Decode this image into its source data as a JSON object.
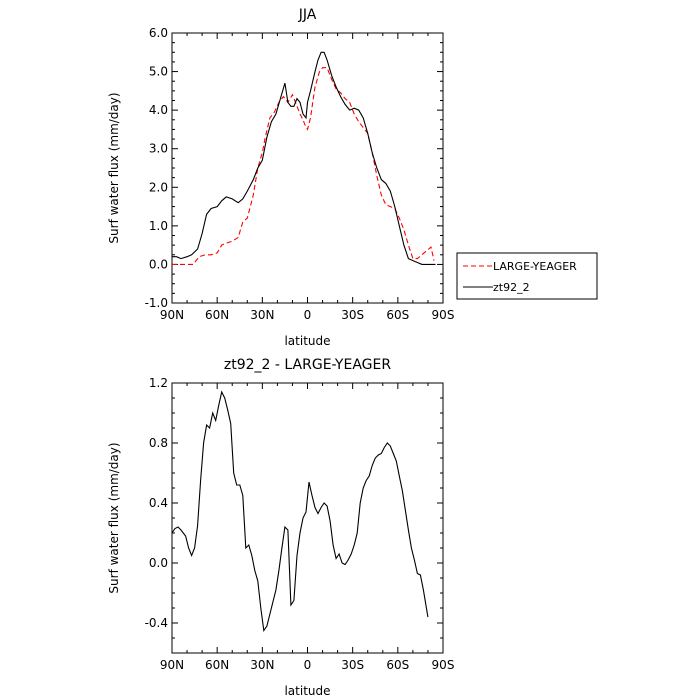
{
  "chart_data": [
    {
      "type": "line",
      "title": "JJA",
      "xlabel": "latitude",
      "ylabel": "Surf water flux (mm/day)",
      "xlim": [
        90,
        -90
      ],
      "ylim": [
        -1.0,
        6.0
      ],
      "xticks": [
        {
          "value": 90,
          "label": "90N"
        },
        {
          "value": 60,
          "label": "60N"
        },
        {
          "value": 30,
          "label": "30N"
        },
        {
          "value": 0,
          "label": "0"
        },
        {
          "value": -30,
          "label": "30S"
        },
        {
          "value": -60,
          "label": "60S"
        },
        {
          "value": -90,
          "label": "90S"
        }
      ],
      "yticks": [
        {
          "value": 6.0,
          "label": "6.0"
        },
        {
          "value": 5.0,
          "label": "5.0"
        },
        {
          "value": 4.0,
          "label": "4.0"
        },
        {
          "value": 3.0,
          "label": "3.0"
        },
        {
          "value": 2.0,
          "label": "2.0"
        },
        {
          "value": 1.0,
          "label": "1.0"
        },
        {
          "value": 0.0,
          "label": "0.0"
        },
        {
          "value": -1.0,
          "label": "-1.0"
        }
      ],
      "legend_position": "right-outside",
      "series": [
        {
          "name": "LARGE-YEAGER",
          "color": "#ff0000",
          "dash": "dashed",
          "x": [
            90,
            85,
            80,
            76,
            72,
            68,
            64,
            60,
            57,
            54,
            50,
            46,
            43,
            40,
            36,
            33,
            30,
            28,
            25,
            22,
            19,
            16,
            13,
            10,
            7,
            5,
            3,
            1,
            0,
            -2,
            -5,
            -8,
            -10,
            -13,
            -16,
            -19,
            -22,
            -25,
            -28,
            -31,
            -34,
            -37,
            -40,
            -43,
            -46,
            -49,
            -52,
            -55,
            -58,
            -61,
            -64,
            -67,
            -70,
            -73,
            -76,
            -79,
            -82,
            -84
          ],
          "y": [
            0.0,
            0.0,
            0.0,
            0.0,
            0.2,
            0.25,
            0.25,
            0.3,
            0.5,
            0.55,
            0.6,
            0.7,
            1.1,
            1.2,
            1.8,
            2.5,
            2.9,
            3.3,
            3.8,
            3.95,
            4.2,
            4.35,
            4.2,
            4.4,
            4.1,
            3.9,
            3.75,
            3.55,
            3.5,
            3.8,
            4.6,
            5.0,
            5.1,
            5.1,
            4.8,
            4.55,
            4.45,
            4.3,
            4.2,
            3.9,
            3.7,
            3.55,
            3.4,
            2.9,
            2.3,
            1.8,
            1.55,
            1.5,
            1.45,
            1.2,
            0.9,
            0.5,
            0.15,
            0.15,
            0.25,
            0.35,
            0.45,
            0.1
          ]
        },
        {
          "name": "zt92_2",
          "color": "#000000",
          "dash": "solid",
          "x": [
            90,
            87,
            84,
            80,
            77,
            73,
            70,
            67,
            64,
            60,
            57,
            54,
            50,
            46,
            43,
            40,
            36,
            33,
            30,
            27,
            24,
            21,
            18,
            15,
            13,
            11,
            9,
            7,
            5,
            3,
            1,
            0,
            -2,
            -5,
            -7,
            -9,
            -11,
            -13,
            -16,
            -19,
            -22,
            -25,
            -28,
            -31,
            -34,
            -37,
            -40,
            -43,
            -46,
            -49,
            -52,
            -55,
            -58,
            -61,
            -64,
            -67,
            -70,
            -73,
            -76,
            -79,
            -82,
            -85
          ],
          "y": [
            0.2,
            0.2,
            0.15,
            0.2,
            0.25,
            0.4,
            0.8,
            1.3,
            1.45,
            1.5,
            1.65,
            1.75,
            1.7,
            1.6,
            1.7,
            1.9,
            2.2,
            2.5,
            2.7,
            3.3,
            3.7,
            3.9,
            4.3,
            4.7,
            4.2,
            4.1,
            4.1,
            4.3,
            4.2,
            3.9,
            3.8,
            4.2,
            4.5,
            5.0,
            5.3,
            5.5,
            5.5,
            5.3,
            4.9,
            4.6,
            4.35,
            4.15,
            4.0,
            4.05,
            4.0,
            3.8,
            3.4,
            2.9,
            2.5,
            2.2,
            2.1,
            1.9,
            1.5,
            1.0,
            0.5,
            0.15,
            0.1,
            0.05,
            0.0,
            0.0,
            0.0,
            0.0
          ]
        }
      ]
    },
    {
      "type": "line",
      "title": "zt92_2 - LARGE-YEAGER",
      "xlabel": "latitude",
      "ylabel": "Surf water flux (mm/day)",
      "xlim": [
        90,
        -90
      ],
      "ylim": [
        -0.6,
        1.2
      ],
      "xticks": [
        {
          "value": 90,
          "label": "90N"
        },
        {
          "value": 60,
          "label": "60N"
        },
        {
          "value": 30,
          "label": "30N"
        },
        {
          "value": 0,
          "label": "0"
        },
        {
          "value": -30,
          "label": "30S"
        },
        {
          "value": -60,
          "label": "60S"
        },
        {
          "value": -90,
          "label": "90S"
        }
      ],
      "yticks": [
        {
          "value": 1.2,
          "label": "1.2"
        },
        {
          "value": 0.8,
          "label": "0.8"
        },
        {
          "value": 0.4,
          "label": "0.4"
        },
        {
          "value": 0.0,
          "label": "0.0"
        },
        {
          "value": -0.4,
          "label": "-0.4"
        }
      ],
      "series": [
        {
          "color": "#000000",
          "dash": "solid",
          "x": [
            90,
            88,
            86,
            84,
            81,
            79,
            77,
            75,
            73,
            71,
            69,
            67,
            65,
            63,
            61,
            59,
            57,
            55,
            53,
            51,
            49,
            47,
            45,
            43,
            41,
            39,
            37,
            35,
            33,
            31,
            29,
            27,
            24,
            21,
            19,
            17,
            15,
            13,
            11,
            9,
            7,
            5,
            3,
            1,
            -1,
            -3,
            -5,
            -7,
            -9,
            -11,
            -13,
            -15,
            -17,
            -19,
            -21,
            -23,
            -25,
            -27,
            -29,
            -31,
            -33,
            -35,
            -37,
            -39,
            -41,
            -43,
            -45,
            -47,
            -49,
            -51,
            -53,
            -55,
            -57,
            -59,
            -61,
            -63,
            -65,
            -67,
            -69,
            -71,
            -73,
            -75,
            -77,
            -79,
            -80
          ],
          "y": [
            0.2,
            0.23,
            0.24,
            0.22,
            0.18,
            0.1,
            0.05,
            0.1,
            0.25,
            0.55,
            0.8,
            0.92,
            0.9,
            1.0,
            0.95,
            1.05,
            1.14,
            1.1,
            1.02,
            0.93,
            0.6,
            0.52,
            0.52,
            0.45,
            0.1,
            0.12,
            0.05,
            -0.05,
            -0.12,
            -0.3,
            -0.45,
            -0.42,
            -0.3,
            -0.18,
            -0.05,
            0.1,
            0.24,
            0.22,
            -0.28,
            -0.25,
            0.05,
            0.2,
            0.3,
            0.34,
            0.54,
            0.45,
            0.37,
            0.33,
            0.37,
            0.4,
            0.38,
            0.28,
            0.12,
            0.03,
            0.06,
            0.0,
            -0.01,
            0.02,
            0.06,
            0.12,
            0.2,
            0.4,
            0.5,
            0.55,
            0.58,
            0.65,
            0.7,
            0.72,
            0.73,
            0.77,
            0.8,
            0.78,
            0.73,
            0.68,
            0.58,
            0.48,
            0.35,
            0.22,
            0.1,
            0.02,
            -0.07,
            -0.08,
            -0.18,
            -0.3,
            -0.36
          ]
        }
      ]
    }
  ]
}
